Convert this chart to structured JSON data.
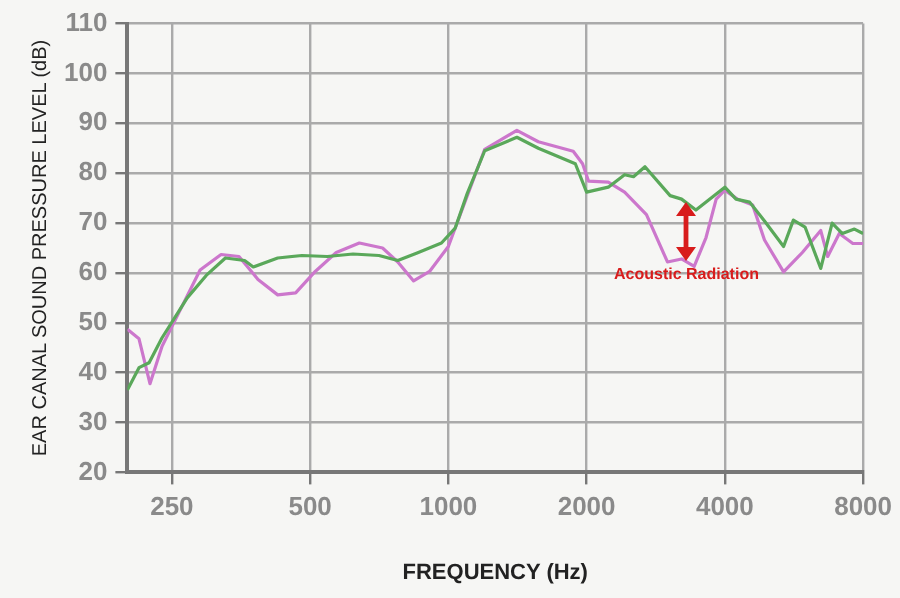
{
  "chart_data": {
    "type": "line",
    "xlabel": "FREQUENCY (Hz)",
    "ylabel": "EAR CANAL SOUND PRESSURE LEVEL (dB)",
    "log": "x",
    "xlim": [
      200,
      8000
    ],
    "xticks": [
      250,
      500,
      1000,
      2000,
      4000,
      8000
    ],
    "ylim": [
      20,
      110
    ],
    "yticks": [
      20,
      30,
      40,
      50,
      60,
      70,
      80,
      90,
      100,
      110
    ],
    "grid": true,
    "legend": false,
    "marker": "none",
    "line_style": "solid",
    "annotations": [
      {
        "text": "Acoustic Radiation",
        "x": 3300,
        "y": 62.8
      }
    ],
    "series": [
      {
        "color": "#5aa85a",
        "x": [
          200,
          212,
          223,
          238,
          270,
          297,
          327,
          360,
          376,
          425,
          480,
          545,
          620,
          706,
          776,
          855,
          966,
          1035,
          1100,
          1200,
          1410,
          1570,
          1890,
          2000,
          2230,
          2420,
          2530,
          2680,
          3040,
          3220,
          3460,
          4000,
          4230,
          4530,
          4880,
          5370,
          5640,
          5980,
          6470,
          6850,
          7210,
          7660,
          8000
        ],
        "values": [
          36.5,
          41,
          42,
          47,
          55,
          59.5,
          63,
          62.5,
          61.2,
          63,
          63.5,
          63.3,
          63.8,
          63.5,
          62.5,
          64,
          66,
          69,
          76,
          84.5,
          87.2,
          85,
          81.9,
          76.2,
          77.2,
          79.7,
          79.3,
          81.3,
          75.5,
          74.8,
          72.6,
          77.2,
          74.8,
          74.2,
          70.4,
          65.3,
          70.6,
          69.2,
          60.9,
          70,
          67.9,
          68.8,
          67.9
        ]
      },
      {
        "color": "#cc77cc",
        "x": [
          200,
          212,
          224,
          238,
          262,
          288,
          320,
          350,
          385,
          425,
          465,
          513,
          570,
          640,
          719,
          776,
          840,
          910,
          1000,
          1035,
          1200,
          1410,
          1570,
          1870,
          1960,
          2020,
          2230,
          2420,
          2700,
          3000,
          3220,
          3430,
          3640,
          3830,
          4000,
          4260,
          4600,
          4880,
          5370,
          5900,
          6470,
          6700,
          7100,
          7600,
          8000
        ],
        "values": [
          48.7,
          46.8,
          37.8,
          45.3,
          53,
          60.6,
          63.7,
          63.3,
          58.7,
          55.6,
          56,
          60.3,
          64.1,
          66,
          65,
          62.2,
          58.4,
          60.3,
          65.3,
          69,
          84.8,
          88.6,
          86.3,
          84.4,
          81.9,
          78.4,
          78.2,
          76.2,
          71.7,
          62.2,
          62.8,
          61.3,
          67.1,
          74.8,
          76.6,
          74.8,
          73.6,
          66.6,
          60.2,
          64.1,
          68.5,
          63.3,
          67.9,
          65.9,
          65.9
        ]
      }
    ]
  }
}
